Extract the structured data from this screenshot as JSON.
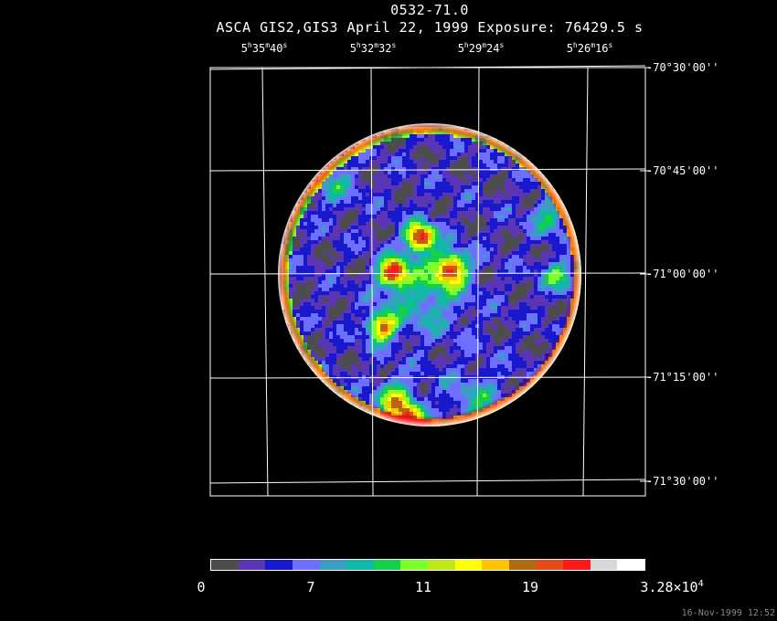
{
  "title": "0532-71.0",
  "subtitle": "ASCA GIS2,GIS3 April 22, 1999 Exposure: 76429.5 s",
  "ra_labels": [
    {
      "h": "5",
      "m": "35",
      "s": "40"
    },
    {
      "h": "5",
      "m": "32",
      "s": "32"
    },
    {
      "h": "5",
      "m": "29",
      "s": "24"
    },
    {
      "h": "5",
      "m": "26",
      "s": "16"
    }
  ],
  "dec_labels": [
    "-70°30'00''",
    "-70°45'00''",
    "-71°00'00''",
    "-71°15'00''",
    "-71°30'00''"
  ],
  "colorbar": {
    "colors": [
      "#4d4d4d",
      "#5a36b4",
      "#1818cc",
      "#6f6fff",
      "#3a9ec2",
      "#10b8a8",
      "#17d04a",
      "#7cff2a",
      "#bde81c",
      "#ffff00",
      "#ffc400",
      "#b06a10",
      "#e44a1a",
      "#ff1a1a",
      "#d8d8d8",
      "#ffffff"
    ],
    "ticks": [
      {
        "label": "0"
      },
      {
        "label": "7"
      },
      {
        "label": "11"
      },
      {
        "label": "19"
      },
      {
        "mant": "3.28×10",
        "exp": "4"
      }
    ]
  },
  "timestamp": "16-Nov-1999 12:52",
  "image": {
    "description_icon": "x-ray-image-icon"
  }
}
